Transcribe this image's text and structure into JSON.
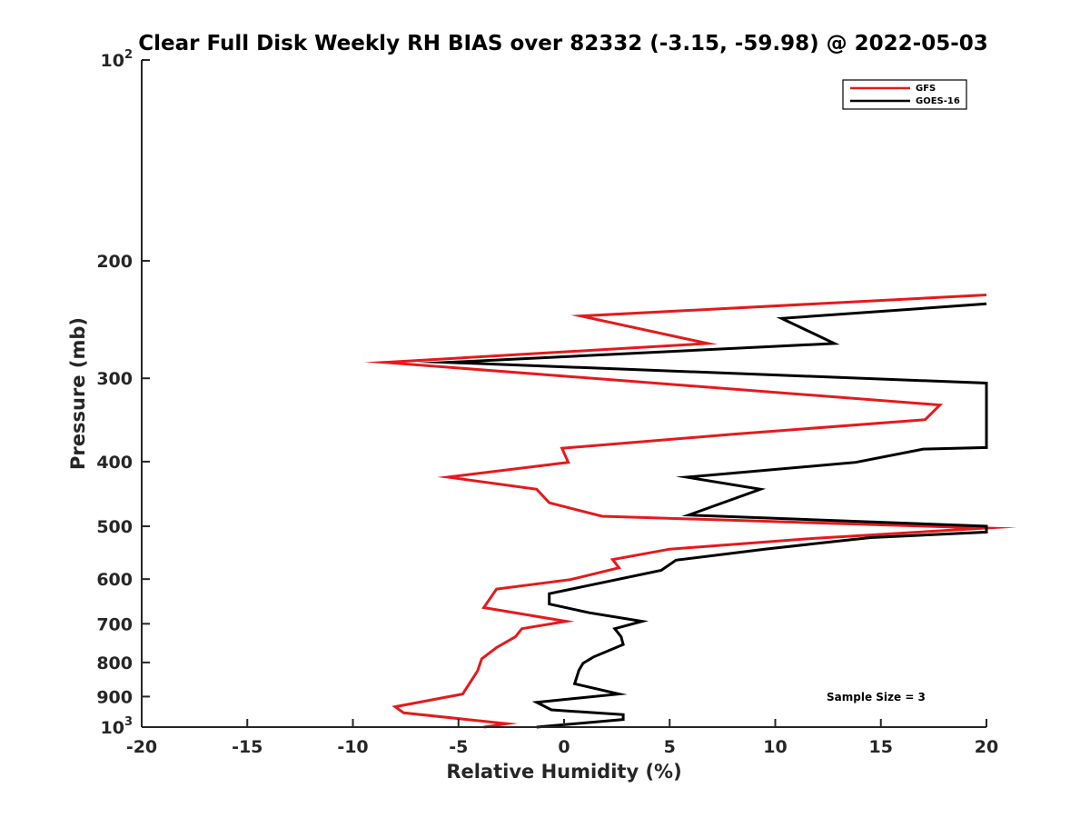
{
  "chart_data": {
    "type": "line",
    "title": "Clear Full Disk Weekly RH BIAS over 82332 (-3.15, -59.98) @ 2022-05-03",
    "xlabel": "Relative Humidity (%)",
    "ylabel": "Pressure (mb)",
    "xlim": [
      -20,
      20
    ],
    "ylim": [
      100,
      1000
    ],
    "y_scale": "log",
    "y_reversed": true,
    "grid": false,
    "legend_position": "top-right",
    "x_ticks": [
      "-20",
      "-15",
      "-10",
      "-5",
      "0",
      "5",
      "10",
      "15",
      "20"
    ],
    "y_ticks": [
      {
        "value": 100,
        "base": "10",
        "exp": "2"
      },
      {
        "value": 200,
        "base": "200",
        "exp": ""
      },
      {
        "value": 300,
        "base": "300",
        "exp": ""
      },
      {
        "value": 400,
        "base": "400",
        "exp": ""
      },
      {
        "value": 500,
        "base": "500",
        "exp": ""
      },
      {
        "value": 600,
        "base": "600",
        "exp": ""
      },
      {
        "value": 700,
        "base": "700",
        "exp": ""
      },
      {
        "value": 800,
        "base": "800",
        "exp": ""
      },
      {
        "value": 900,
        "base": "900",
        "exp": ""
      },
      {
        "value": 1000,
        "base": "10",
        "exp": "3"
      }
    ],
    "annotation": "Sample Size = 3",
    "series": [
      {
        "name": "GFS",
        "color": "#e41a1c",
        "points": [
          [
            20,
            225
          ],
          [
            0.8,
            242
          ],
          [
            6.8,
            266
          ],
          [
            -8.5,
            284
          ],
          [
            2.5,
            302
          ],
          [
            17.8,
            329
          ],
          [
            17.1,
            346
          ],
          [
            8,
            364
          ],
          [
            -0.1,
            382
          ],
          [
            0.2,
            401
          ],
          [
            -5.5,
            422
          ],
          [
            -1.3,
            440
          ],
          [
            -0.7,
            461
          ],
          [
            1.8,
            483
          ],
          [
            20,
            503
          ],
          [
            11.9,
            521
          ],
          [
            5,
            541
          ],
          [
            2.3,
            561
          ],
          [
            2.6,
            577
          ],
          [
            0.3,
            601
          ],
          [
            -3.2,
            621
          ],
          [
            -3.8,
            662
          ],
          [
            0.1,
            694
          ],
          [
            -2,
            712
          ],
          [
            -2.3,
            732
          ],
          [
            -3.2,
            760
          ],
          [
            -3.9,
            790
          ],
          [
            -4.1,
            824
          ],
          [
            -4.5,
            862
          ],
          [
            -4.8,
            892
          ],
          [
            -8,
            932
          ],
          [
            -7.6,
            952
          ],
          [
            -2.7,
            988
          ],
          [
            -3.8,
            1000
          ]
        ]
      },
      {
        "name": "GOES-16",
        "color": "#000000",
        "points": [
          [
            20,
            232
          ],
          [
            10.3,
            244
          ],
          [
            12.8,
            266
          ],
          [
            -5.5,
            284
          ],
          [
            20,
            305
          ],
          [
            20,
            381
          ],
          [
            17,
            383
          ],
          [
            13.8,
            401
          ],
          [
            5.8,
            422
          ],
          [
            9.3,
            440
          ],
          [
            5.9,
            481
          ],
          [
            20,
            500
          ],
          [
            20,
            510
          ],
          [
            14.5,
            520
          ],
          [
            9.5,
            541
          ],
          [
            5.3,
            562
          ],
          [
            4.6,
            582
          ],
          [
            -0.7,
            631
          ],
          [
            -0.7,
            654
          ],
          [
            1.2,
            674
          ],
          [
            3.7,
            694
          ],
          [
            2.4,
            712
          ],
          [
            2.7,
            732
          ],
          [
            2.8,
            752
          ],
          [
            1.4,
            785
          ],
          [
            0.9,
            802
          ],
          [
            0.7,
            822
          ],
          [
            0.6,
            841
          ],
          [
            0.5,
            861
          ],
          [
            2.6,
            892
          ],
          [
            -1.3,
            918
          ],
          [
            -0.6,
            942
          ],
          [
            2.8,
            958
          ],
          [
            2.8,
            974
          ],
          [
            -1.3,
            1000
          ]
        ]
      }
    ]
  }
}
